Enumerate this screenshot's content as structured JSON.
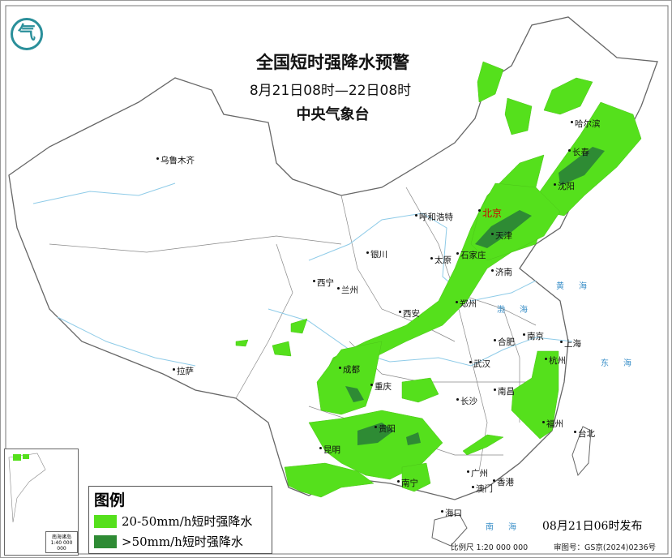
{
  "header": {
    "title": "全国短时强降水预警",
    "period": "8月21日08时—22日08时",
    "agency": "中央气象台"
  },
  "logo": {
    "icon": "cma-logo",
    "text": "气"
  },
  "cities": [
    {
      "name": "乌鲁木齐"
    },
    {
      "name": "哈尔滨"
    },
    {
      "name": "长春"
    },
    {
      "name": "沈阳"
    },
    {
      "name": "北京",
      "capital": true
    },
    {
      "name": "天津"
    },
    {
      "name": "呼和浩特"
    },
    {
      "name": "石家庄"
    },
    {
      "name": "太原"
    },
    {
      "name": "济南"
    },
    {
      "name": "银川"
    },
    {
      "name": "西宁"
    },
    {
      "name": "兰州"
    },
    {
      "name": "郑州"
    },
    {
      "name": "西安"
    },
    {
      "name": "合肥"
    },
    {
      "name": "南京"
    },
    {
      "name": "上海"
    },
    {
      "name": "武汉"
    },
    {
      "name": "杭州"
    },
    {
      "name": "成都"
    },
    {
      "name": "拉萨"
    },
    {
      "name": "重庆"
    },
    {
      "name": "南昌"
    },
    {
      "name": "长沙"
    },
    {
      "name": "贵阳"
    },
    {
      "name": "福州"
    },
    {
      "name": "台北"
    },
    {
      "name": "昆明"
    },
    {
      "name": "南宁"
    },
    {
      "name": "广州"
    },
    {
      "name": "香港"
    },
    {
      "name": "澳门"
    },
    {
      "name": "海口"
    }
  ],
  "seas": {
    "bohai": "渤海",
    "huanghai": "黄海",
    "donghai": "东海",
    "nanhai": "南海"
  },
  "inset": {
    "label": "南海诸岛",
    "scale": "1:40 000 000"
  },
  "legend": {
    "title": "图例",
    "items": [
      {
        "label": "20-50mm/h短时强降水",
        "color": "#55e01c"
      },
      {
        "label": ">50mm/h短时强降水",
        "color": "#2e8b34"
      }
    ]
  },
  "footer": {
    "issued": "08月21日06时发布",
    "scale": "比例尺 1:20 000 000",
    "review": "审图号：GS京(2024)0236号"
  },
  "colors": {
    "light_green": "#55e01c",
    "dark_green": "#2e8b34",
    "border": "#777777",
    "river": "#8ecbe8"
  }
}
